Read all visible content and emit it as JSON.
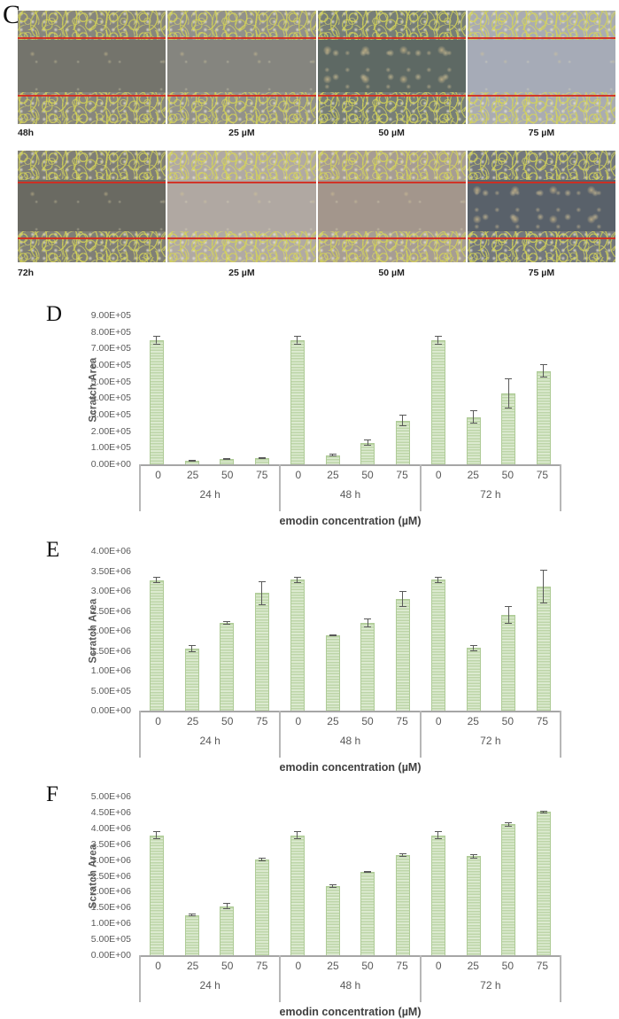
{
  "figure": {
    "panel_c": {
      "label": "C",
      "rows": [
        {
          "name": "48h",
          "captions": [
            "48h",
            "25 µM",
            "50 µM",
            "75 µM"
          ],
          "image_tints": [
            "#74746c",
            "#85857f",
            "#5e6964",
            "#a6abb7"
          ]
        },
        {
          "name": "72h",
          "captions": [
            "72h",
            "25 µM",
            "50 µM",
            "75 µM"
          ],
          "image_tints": [
            "#6a6a62",
            "#b0a8a2",
            "#a3968c",
            "#59616a"
          ]
        }
      ],
      "annotation_colors": {
        "scratch_edge_line": "#d42b1e",
        "cell_outline": "#d6d455"
      }
    }
  },
  "colors": {
    "bar_fill": "#dcead0",
    "bar_stripe": "#bdd5a8",
    "bar_border": "#aecb96",
    "error_bar": "#595959",
    "axis_line": "#a6a6a6",
    "axis_table_border": "#b7b7b7",
    "tick_text": "#595959",
    "title_text": "#404040"
  },
  "chart_data": [
    {
      "type": "bar",
      "panel": "D",
      "ylabel": "Scratch Area",
      "xlabel": "emodin concentration (µM)",
      "ylim": [
        0,
        900000
      ],
      "ytick_labels": [
        "9.00E+05",
        "8.00E+05",
        "7.00E+05",
        "6.00E+05",
        "5.00E+05",
        "4.00E+05",
        "3.00E+05",
        "2.00E+05",
        "1.00E+05",
        "0.00E+00"
      ],
      "grid": false,
      "legend": false,
      "group_labels": [
        "24 h",
        "48 h",
        "72 h"
      ],
      "categories": [
        "0",
        "25",
        "50",
        "75"
      ],
      "series": [
        {
          "group": "24 h",
          "values": [
            750000,
            20000,
            30000,
            38000
          ],
          "errors": [
            25000,
            6000,
            5000,
            6000
          ]
        },
        {
          "group": "48 h",
          "values": [
            750000,
            55000,
            130000,
            265000
          ],
          "errors": [
            25000,
            8000,
            20000,
            35000
          ]
        },
        {
          "group": "72 h",
          "values": [
            750000,
            285000,
            430000,
            565000
          ],
          "errors": [
            25000,
            40000,
            90000,
            40000
          ]
        }
      ]
    },
    {
      "type": "bar",
      "panel": "E",
      "ylabel": "Scratch Area",
      "xlabel": "emodin concentration (µM)",
      "ylim": [
        0,
        4000000
      ],
      "ytick_labels": [
        "4.00E+06",
        "3.50E+06",
        "3.00E+06",
        "2.50E+06",
        "2.00E+06",
        "1.50E+06",
        "1.00E+06",
        "5.00E+05",
        "0.00E+00"
      ],
      "grid": false,
      "legend": false,
      "group_labels": [
        "24 h",
        "48 h",
        "72 h"
      ],
      "categories": [
        "0",
        "25",
        "50",
        "75"
      ],
      "series": [
        {
          "group": "24 h",
          "values": [
            3270000,
            1550000,
            2200000,
            2950000
          ],
          "errors": [
            80000,
            90000,
            40000,
            300000
          ]
        },
        {
          "group": "48 h",
          "values": [
            3280000,
            1880000,
            2200000,
            2800000
          ],
          "errors": [
            80000,
            15000,
            120000,
            200000
          ]
        },
        {
          "group": "72 h",
          "values": [
            3280000,
            1570000,
            2400000,
            3120000
          ],
          "errors": [
            80000,
            70000,
            220000,
            420000
          ]
        }
      ]
    },
    {
      "type": "bar",
      "panel": "F",
      "ylabel": "Scratch Area",
      "xlabel": "emodin concentration (µM)",
      "ylim": [
        0,
        5000000
      ],
      "ytick_labels": [
        "5.00E+06",
        "4.50E+06",
        "4.00E+06",
        "3.50E+06",
        "3.00E+06",
        "2.50E+06",
        "2.00E+06",
        "1.50E+06",
        "1.00E+06",
        "5.00E+05",
        "0.00E+00"
      ],
      "grid": false,
      "legend": false,
      "group_labels": [
        "24 h",
        "48 h",
        "72 h"
      ],
      "categories": [
        "0",
        "25",
        "50",
        "75"
      ],
      "series": [
        {
          "group": "24 h",
          "values": [
            3780000,
            1270000,
            1550000,
            3020000
          ],
          "errors": [
            120000,
            40000,
            90000,
            60000
          ]
        },
        {
          "group": "48 h",
          "values": [
            3780000,
            2170000,
            2630000,
            3150000
          ],
          "errors": [
            120000,
            60000,
            25000,
            50000
          ]
        },
        {
          "group": "72 h",
          "values": [
            3780000,
            3120000,
            4130000,
            4520000
          ],
          "errors": [
            120000,
            70000,
            70000,
            40000
          ]
        }
      ]
    }
  ]
}
